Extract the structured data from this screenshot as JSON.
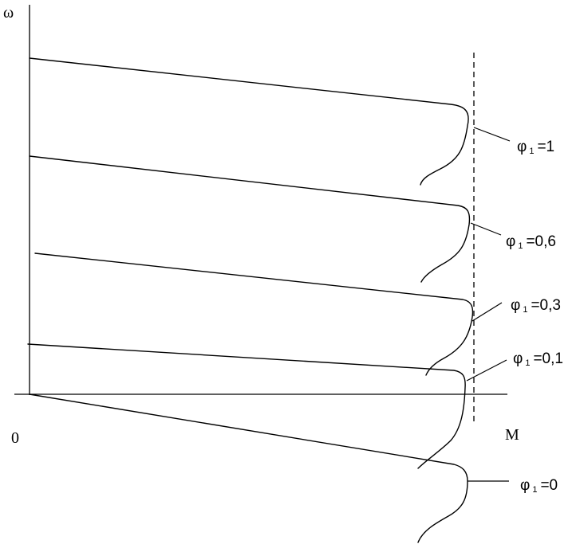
{
  "axes": {
    "y_label": "ω",
    "x_label": "M",
    "origin_label": "0"
  },
  "curves": [
    {
      "symbol": "φ",
      "subscript": "1",
      "value": "=1"
    },
    {
      "symbol": "φ",
      "subscript": "1",
      "value": "=0,6"
    },
    {
      "symbol": "φ",
      "subscript": "1",
      "value": "=0,3"
    },
    {
      "symbol": "φ",
      "subscript": "1",
      "value": "=0,1"
    },
    {
      "symbol": "φ",
      "subscript": "1",
      "value": "=0"
    }
  ]
}
